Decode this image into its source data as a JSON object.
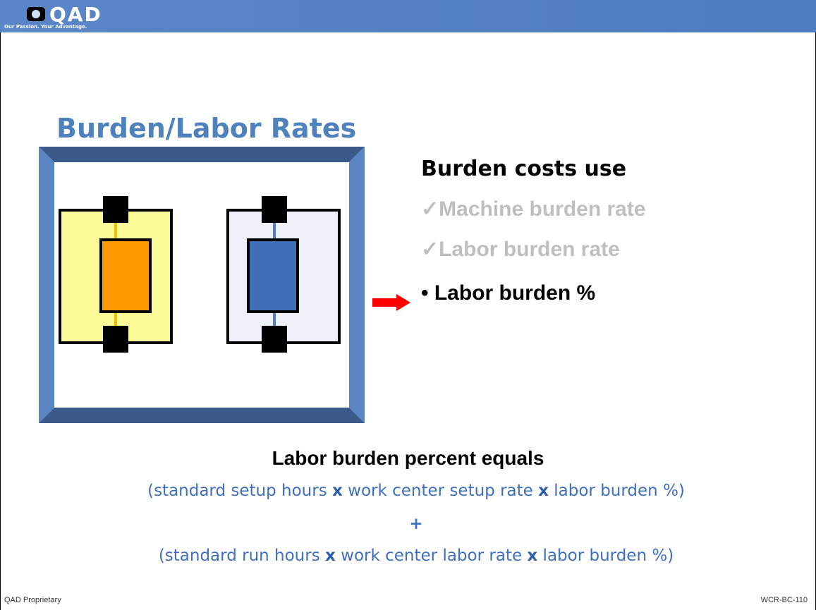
{
  "header": {
    "logo": "QAD",
    "tagline": "Our Passion. Your Advantage."
  },
  "title": "Burden/Labor Rates",
  "list": {
    "heading": "Burden costs use",
    "items": [
      {
        "marker": "✓",
        "text": "Machine burden rate"
      },
      {
        "marker": "✓",
        "text": "Labor burden rate"
      },
      {
        "marker": "•",
        "text": "Labor burden %"
      }
    ]
  },
  "formula": {
    "heading": "Labor burden percent equals",
    "line1": [
      "(standard setup hours ",
      "x",
      " work center setup rate ",
      "x",
      " labor burden %)"
    ],
    "operator": "+",
    "line2": [
      "(standard run hours ",
      "x",
      " work center labor rate ",
      "x",
      " labor burden %)"
    ]
  },
  "footer": {
    "left": "QAD Proprietary",
    "right": "WCR-BC-110"
  }
}
